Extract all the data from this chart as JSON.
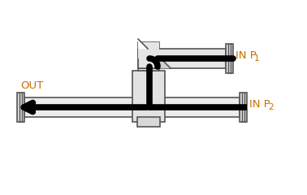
{
  "bg_color": "#ffffff",
  "line_color": "#555555",
  "flow_color": "#000000",
  "label_color": "#c87000",
  "fig_width": 3.78,
  "fig_height": 2.4,
  "dpi": 100,
  "label_out": "OUT",
  "label_p1": "IN P",
  "label_p1_sub": "1",
  "label_p2": "IN P",
  "label_p2_sub": "2",
  "label_fontsize": 9.5,
  "sub_fontsize": 7.5
}
